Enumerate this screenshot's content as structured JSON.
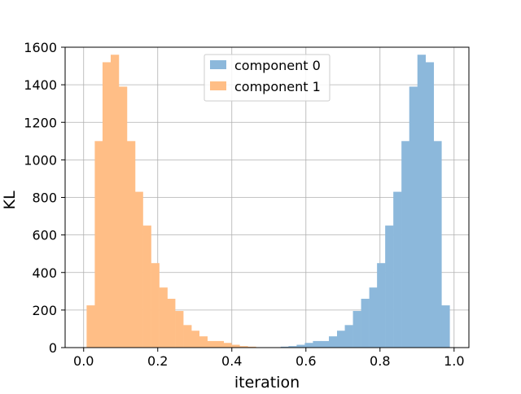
{
  "chart_data": {
    "type": "histogram",
    "title": "",
    "xlabel": "iteration",
    "ylabel": "KL",
    "xlim": [
      -0.05,
      1.04
    ],
    "ylim": [
      0,
      1600
    ],
    "x_ticks": [
      0.0,
      0.2,
      0.4,
      0.6,
      0.8,
      1.0
    ],
    "x_tick_labels": [
      "0.0",
      "0.2",
      "0.4",
      "0.6",
      "0.8",
      "1.0"
    ],
    "y_ticks": [
      0,
      200,
      400,
      600,
      800,
      1000,
      1200,
      1400,
      1600
    ],
    "y_tick_labels": [
      "0",
      "200",
      "400",
      "600",
      "800",
      "1000",
      "1200",
      "1400",
      "1600"
    ],
    "grid": true,
    "legend_position": "top-center",
    "bin_width": 0.0217,
    "series": [
      {
        "name": "component 0",
        "color": "#8cb8db",
        "bin_starts": [
          0.532,
          0.553,
          0.575,
          0.597,
          0.619,
          0.64,
          0.662,
          0.684,
          0.705,
          0.727,
          0.749,
          0.771,
          0.792,
          0.814,
          0.836,
          0.858,
          0.879,
          0.901,
          0.923,
          0.944,
          0.966
        ],
        "counts": [
          5,
          8,
          15,
          25,
          35,
          35,
          60,
          90,
          120,
          195,
          260,
          320,
          450,
          650,
          830,
          1100,
          1390,
          1560,
          1520,
          1100,
          225
        ]
      },
      {
        "name": "component 1",
        "color": "#ffbe86",
        "bin_starts": [
          0.008,
          0.03,
          0.051,
          0.073,
          0.095,
          0.117,
          0.138,
          0.16,
          0.182,
          0.204,
          0.225,
          0.247,
          0.269,
          0.29,
          0.312,
          0.334,
          0.356,
          0.377,
          0.399,
          0.421,
          0.443
        ],
        "counts": [
          225,
          1100,
          1520,
          1560,
          1390,
          1100,
          830,
          650,
          450,
          320,
          260,
          195,
          120,
          90,
          60,
          35,
          35,
          25,
          15,
          8,
          5
        ]
      }
    ]
  }
}
